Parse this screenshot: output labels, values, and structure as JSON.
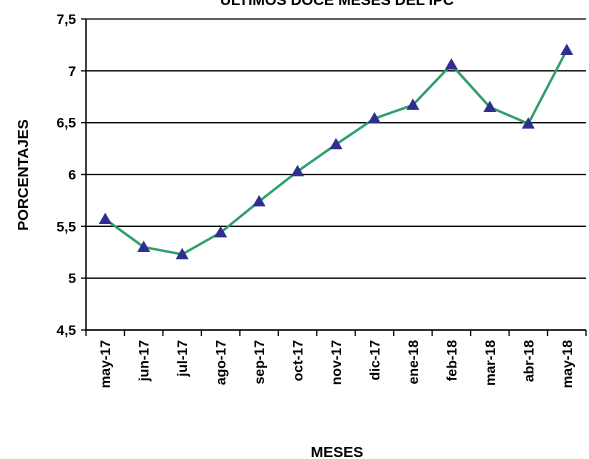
{
  "chart_data": {
    "type": "line",
    "title": "ÚLTIMOS DOCE MESES DEL IPC",
    "xlabel": "MESES",
    "ylabel": "PORCENTAJES",
    "categories": [
      "may-17",
      "jun-17",
      "jul-17",
      "ago-17",
      "sep-17",
      "oct-17",
      "nov-17",
      "dic-17",
      "ene-18",
      "feb-18",
      "mar-18",
      "abr-18",
      "may-18"
    ],
    "series": [
      {
        "values": [
          5.57,
          5.3,
          5.23,
          5.44,
          5.74,
          6.03,
          6.29,
          6.54,
          6.67,
          7.06,
          6.65,
          6.49,
          7.2
        ]
      }
    ],
    "ylim": [
      4.5,
      7.5
    ],
    "yticks": [
      "4,5",
      "5",
      "5,5",
      "6",
      "6,5",
      "7",
      "7,5"
    ],
    "grid": true,
    "line_color": "#2e9e6b",
    "marker_color": "#2e2e8f",
    "marker": "triangle"
  }
}
